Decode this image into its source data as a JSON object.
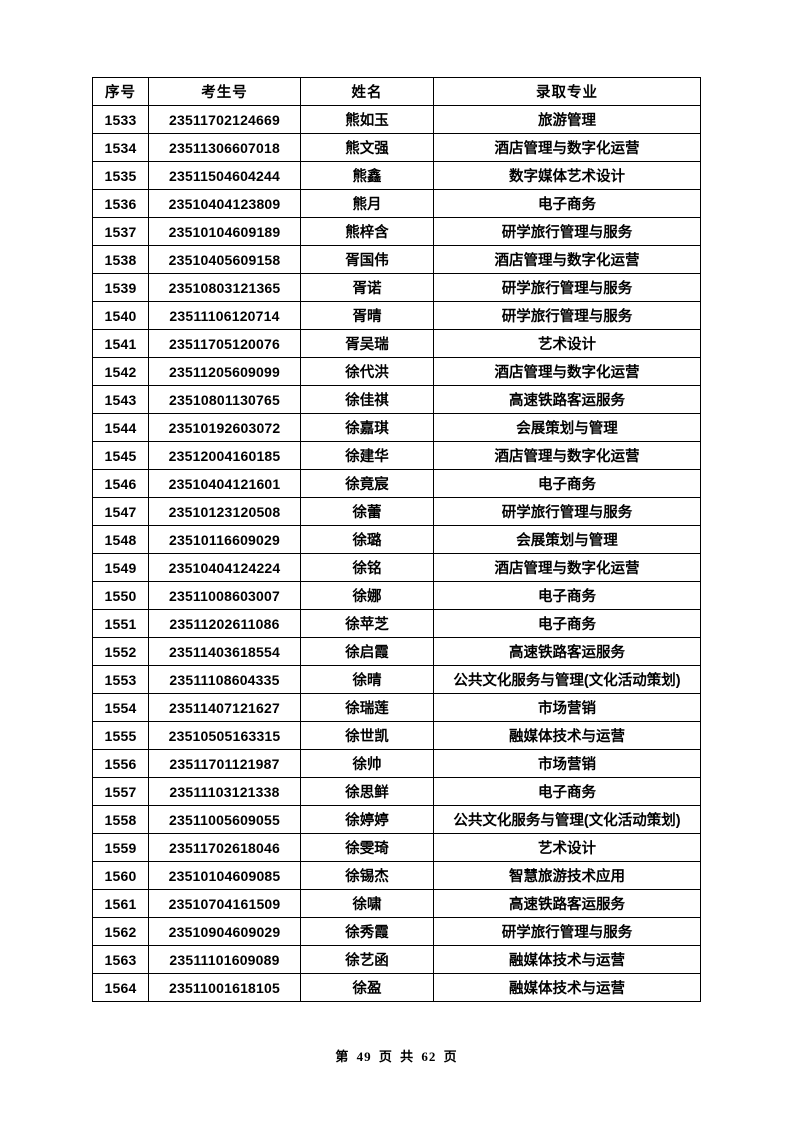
{
  "page": {
    "footer": "第 49 页 共 62 页"
  },
  "table": {
    "headers": [
      "序号",
      "考生号",
      "姓名",
      "录取专业"
    ],
    "rows": [
      [
        "1533",
        "23511702124669",
        "熊如玉",
        "旅游管理"
      ],
      [
        "1534",
        "23511306607018",
        "熊文强",
        "酒店管理与数字化运营"
      ],
      [
        "1535",
        "23511504604244",
        "熊鑫",
        "数字媒体艺术设计"
      ],
      [
        "1536",
        "23510404123809",
        "熊月",
        "电子商务"
      ],
      [
        "1537",
        "23510104609189",
        "熊梓含",
        "研学旅行管理与服务"
      ],
      [
        "1538",
        "23510405609158",
        "胥国伟",
        "酒店管理与数字化运营"
      ],
      [
        "1539",
        "23510803121365",
        "胥诺",
        "研学旅行管理与服务"
      ],
      [
        "1540",
        "23511106120714",
        "胥晴",
        "研学旅行管理与服务"
      ],
      [
        "1541",
        "23511705120076",
        "胥吴瑞",
        "艺术设计"
      ],
      [
        "1542",
        "23511205609099",
        "徐代洪",
        "酒店管理与数字化运营"
      ],
      [
        "1543",
        "23510801130765",
        "徐佳祺",
        "高速铁路客运服务"
      ],
      [
        "1544",
        "23510192603072",
        "徐嘉琪",
        "会展策划与管理"
      ],
      [
        "1545",
        "23512004160185",
        "徐建华",
        "酒店管理与数字化运营"
      ],
      [
        "1546",
        "23510404121601",
        "徐竟宸",
        "电子商务"
      ],
      [
        "1547",
        "23510123120508",
        "徐蕾",
        "研学旅行管理与服务"
      ],
      [
        "1548",
        "23510116609029",
        "徐璐",
        "会展策划与管理"
      ],
      [
        "1549",
        "23510404124224",
        "徐铭",
        "酒店管理与数字化运营"
      ],
      [
        "1550",
        "23511008603007",
        "徐娜",
        "电子商务"
      ],
      [
        "1551",
        "23511202611086",
        "徐苹芝",
        "电子商务"
      ],
      [
        "1552",
        "23511403618554",
        "徐启霞",
        "高速铁路客运服务"
      ],
      [
        "1553",
        "23511108604335",
        "徐晴",
        "公共文化服务与管理(文化活动策划)"
      ],
      [
        "1554",
        "23511407121627",
        "徐瑞莲",
        "市场营销"
      ],
      [
        "1555",
        "23510505163315",
        "徐世凯",
        "融媒体技术与运营"
      ],
      [
        "1556",
        "23511701121987",
        "徐帅",
        "市场营销"
      ],
      [
        "1557",
        "23511103121338",
        "徐思鲜",
        "电子商务"
      ],
      [
        "1558",
        "23511005609055",
        "徐婷婷",
        "公共文化服务与管理(文化活动策划)"
      ],
      [
        "1559",
        "23511702618046",
        "徐雯琦",
        "艺术设计"
      ],
      [
        "1560",
        "23510104609085",
        "徐锡杰",
        "智慧旅游技术应用"
      ],
      [
        "1561",
        "23510704161509",
        "徐啸",
        "高速铁路客运服务"
      ],
      [
        "1562",
        "23510904609029",
        "徐秀霞",
        "研学旅行管理与服务"
      ],
      [
        "1563",
        "23511101609089",
        "徐艺函",
        "融媒体技术与运营"
      ],
      [
        "1564",
        "23511001618105",
        "徐盈",
        "融媒体技术与运营"
      ]
    ]
  }
}
